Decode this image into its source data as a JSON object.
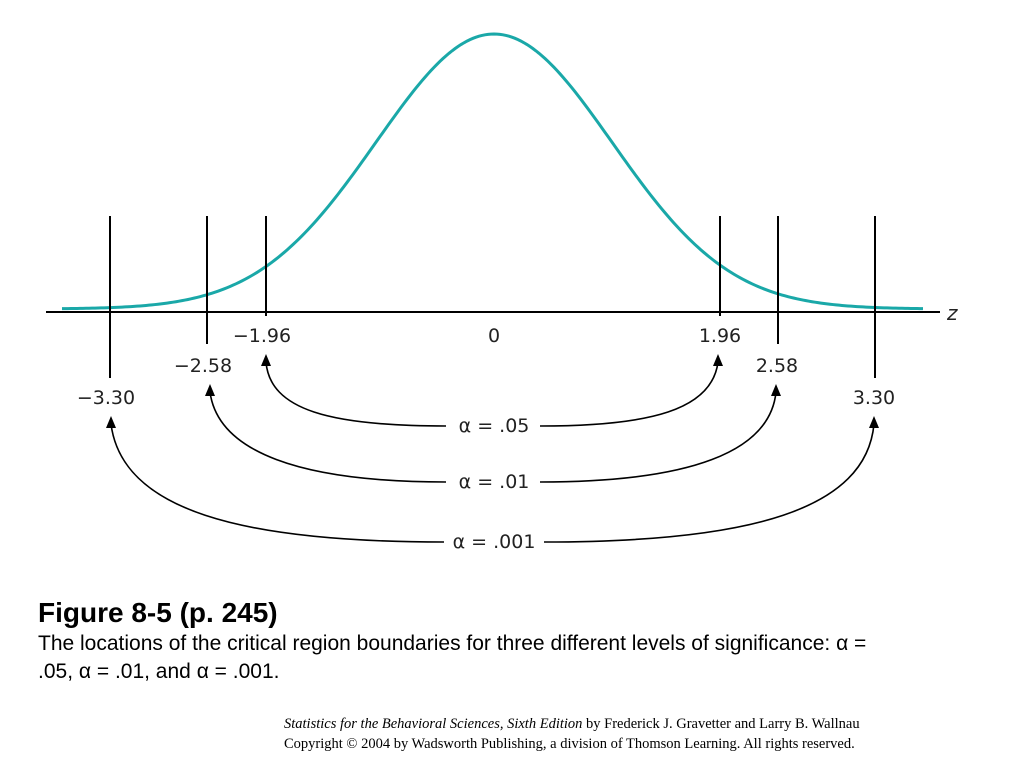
{
  "figure": {
    "axis_variable": "z",
    "tick_labels": {
      "neg_330": "−3.30",
      "neg_258": "−2.58",
      "neg_196": "−1.96",
      "zero": "0",
      "pos_196": "1.96",
      "pos_258": "2.58",
      "pos_330": "3.30"
    },
    "alpha_labels": {
      "a05": "α = .05",
      "a01": "α = .01",
      "a001": "α = .001"
    },
    "curve_color": "#1aa8a8",
    "line_color": "#000000",
    "boundaries": [
      {
        "alpha": ".05",
        "z": 1.96
      },
      {
        "alpha": ".01",
        "z": 2.58
      },
      {
        "alpha": ".001",
        "z": 3.3
      }
    ]
  },
  "caption": {
    "title": "Figure 8-5  (p. 245)",
    "text_before": "The locations of the critical region boundaries for three different levels of significance: ",
    "text_alpha1": "α = .05, ",
    "text_alpha2": "α = .01, and ",
    "text_alpha3": "α = .001."
  },
  "credit": {
    "book_title": "Statistics for the Behavioral Sciences, Sixth Edition",
    "authors": " by Frederick J. Gravetter and Larry B. Wallnau",
    "copyright": "Copyright © 2004 by Wadsworth Publishing, a division of Thomson Learning.  All rights reserved."
  }
}
